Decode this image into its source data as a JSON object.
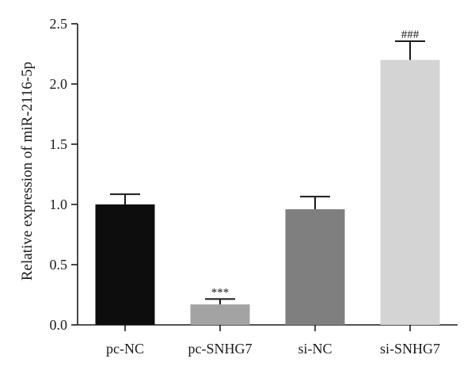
{
  "chart_data": {
    "type": "bar",
    "categories": [
      "pc-NC",
      "pc-SNHG7",
      "si-NC",
      "si-SNHG7"
    ],
    "values": [
      1.0,
      0.17,
      0.96,
      2.2
    ],
    "errors": [
      0.085,
      0.045,
      0.105,
      0.155
    ],
    "annotations": [
      "",
      "***",
      "",
      "###"
    ],
    "colors": [
      "#0d0d0d",
      "#a3a3a3",
      "#7f7f7f",
      "#d4d4d4"
    ],
    "ylabel": "Relative expression of miR-2116-5p",
    "xlabel": "",
    "title": "",
    "ylim": [
      0,
      2.5
    ],
    "yticks": [
      "0.0",
      "0.5",
      "1.0",
      "1.5",
      "2.0",
      "2.5"
    ],
    "grid": false
  }
}
